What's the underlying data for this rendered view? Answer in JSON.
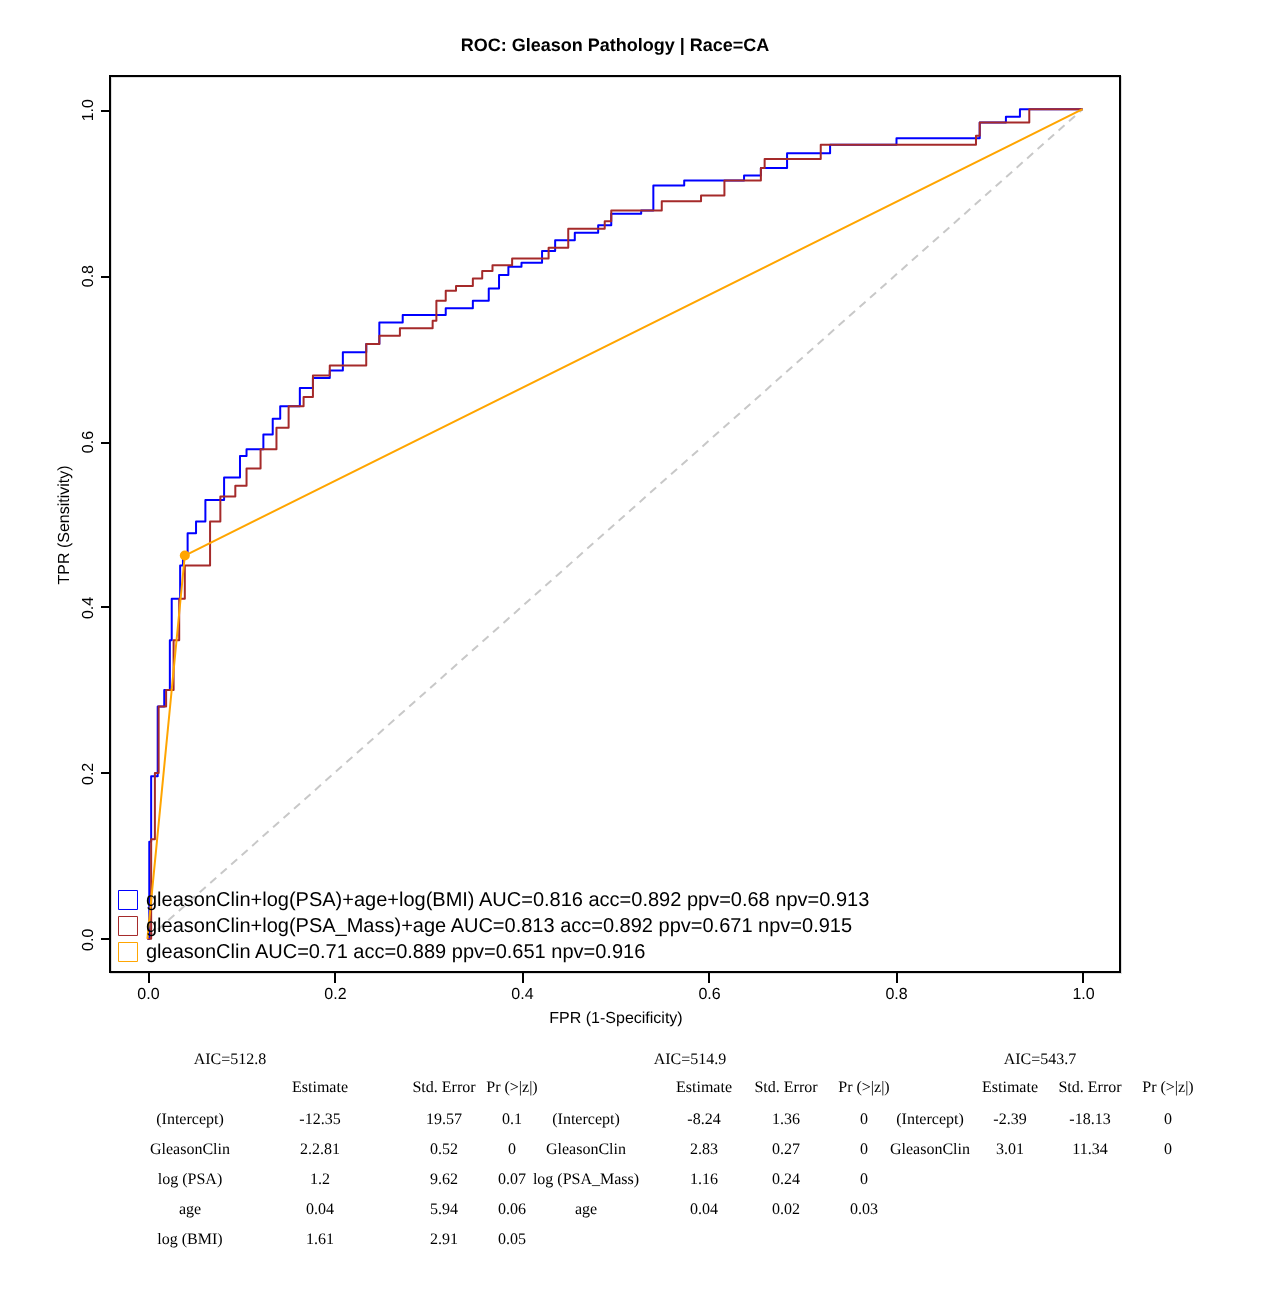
{
  "chart_data": {
    "type": "step",
    "title": "ROC: Gleason Pathology | Race=CA",
    "xlabel": "FPR (1-Specificity)",
    "ylabel": "TPR (Sensitivity)",
    "xlim": [
      -0.04,
      1.04
    ],
    "ylim": [
      -0.04,
      1.04
    ],
    "xticks": [
      {
        "value": 0,
        "label": "0.0"
      },
      0.2,
      0.4,
      0.6,
      0.8,
      {
        "value": 1,
        "label": "1.0"
      }
    ],
    "yticks": [
      {
        "value": 0,
        "label": "0.0"
      },
      0.2,
      0.4,
      0.6,
      0.8,
      {
        "value": 1,
        "label": "1.0"
      }
    ],
    "grid": false,
    "legend": "bottom left",
    "series": [
      {
        "type": "line",
        "color": "#c8c8c8",
        "line_style": "dashed",
        "x": [
          0,
          1
        ],
        "values": [
          0,
          1
        ]
      },
      {
        "name": "gleasonClin+log(PSA)+age+log(BMI) AUC=0.816 acc=0.892 ppv=0.68 npv=0.913",
        "color": "#0000ff",
        "x": [
          0,
          0.002,
          0.004,
          0.011,
          0.018,
          0.024,
          0.026,
          0.035,
          0.038,
          0.043,
          0.052,
          0.062,
          0.082,
          0.099,
          0.106,
          0.124,
          0.134,
          0.142,
          0.163,
          0.177,
          0.195,
          0.209,
          0.234,
          0.248,
          0.273,
          0.319,
          0.348,
          0.365,
          0.376,
          0.386,
          0.4,
          0.422,
          0.436,
          0.457,
          0.482,
          0.496,
          0.528,
          0.541,
          0.574,
          0.638,
          0.656,
          0.684,
          0.73,
          0.801,
          0.89,
          0.918,
          0.933,
          1
        ],
        "values": [
          0,
          0.117,
          0.196,
          0.28,
          0.3,
          0.36,
          0.41,
          0.45,
          0.46,
          0.489,
          0.503,
          0.529,
          0.556,
          0.582,
          0.59,
          0.608,
          0.627,
          0.642,
          0.664,
          0.676,
          0.685,
          0.707,
          0.717,
          0.743,
          0.752,
          0.76,
          0.769,
          0.784,
          0.8,
          0.81,
          0.815,
          0.829,
          0.842,
          0.851,
          0.86,
          0.874,
          0.878,
          0.908,
          0.914,
          0.92,
          0.929,
          0.947,
          0.957,
          0.965,
          0.984,
          0.991,
          1,
          1
        ]
      },
      {
        "name": "gleasonClin+log(PSA_Mass)+age AUC=0.813 acc=0.892 ppv=0.671 npv=0.915",
        "color": "#a52a2a",
        "x": [
          0,
          0.004,
          0.008,
          0.012,
          0.02,
          0.028,
          0.034,
          0.04,
          0.067,
          0.078,
          0.094,
          0.106,
          0.121,
          0.138,
          0.151,
          0.167,
          0.177,
          0.195,
          0.234,
          0.248,
          0.27,
          0.305,
          0.309,
          0.319,
          0.33,
          0.348,
          0.358,
          0.369,
          0.39,
          0.429,
          0.45,
          0.489,
          0.496,
          0.55,
          0.592,
          0.617,
          0.656,
          0.66,
          0.72,
          0.886,
          0.89,
          0.943,
          0.943,
          1
        ],
        "values": [
          0,
          0.12,
          0.2,
          0.28,
          0.3,
          0.36,
          0.41,
          0.45,
          0.503,
          0.533,
          0.546,
          0.567,
          0.59,
          0.616,
          0.642,
          0.653,
          0.679,
          0.691,
          0.717,
          0.727,
          0.736,
          0.745,
          0.769,
          0.781,
          0.787,
          0.796,
          0.805,
          0.812,
          0.82,
          0.833,
          0.856,
          0.865,
          0.878,
          0.889,
          0.896,
          0.914,
          0.929,
          0.94,
          0.957,
          0.968,
          0.984,
          0.993,
          1,
          1
        ]
      },
      {
        "type": "line",
        "name": "gleasonClin AUC=0.71 acc=0.889 ppv=0.651 npv=0.916",
        "color": "#ffa500",
        "x": [
          0,
          0.04,
          1
        ],
        "values": [
          0,
          0.462,
          1
        ]
      },
      {
        "type": "scatter",
        "color": "#ffa500",
        "marker": "circle",
        "x": [
          0.04
        ],
        "values": [
          0.462
        ]
      }
    ],
    "annotations": [
      "AIC=512.8",
      "Estimate",
      "Std. Error",
      "Pr (>|z|)",
      "(Intercept)",
      "-12.35",
      "19.57",
      "0.1",
      "GleasonClin",
      "2.2.81",
      "0.52",
      "0",
      "log (PSA)",
      "1.2",
      "9.62",
      "0.07",
      "age",
      "0.04",
      "5.94",
      "0.06",
      "log (BMI)",
      "1.61",
      "2.91",
      "0.05",
      "AIC=514.9",
      "Estimate",
      "Std. Error",
      "Pr (>|z|)",
      "(Intercept)",
      "-8.24",
      "1.36",
      "0",
      "GleasonClin",
      "2.83",
      "0.27",
      "0",
      "log (PSA_Mass)",
      "1.16",
      "0.24",
      "0",
      "age",
      "0.04",
      "0.02",
      "0.03",
      "AIC=543.7",
      "Estimate",
      "Std. Error",
      "Pr (>|z|)",
      "(Intercept)",
      "-2.39",
      "-18.13",
      "0",
      "GleasonClin",
      "3.01",
      "11.34",
      "0"
    ]
  }
}
